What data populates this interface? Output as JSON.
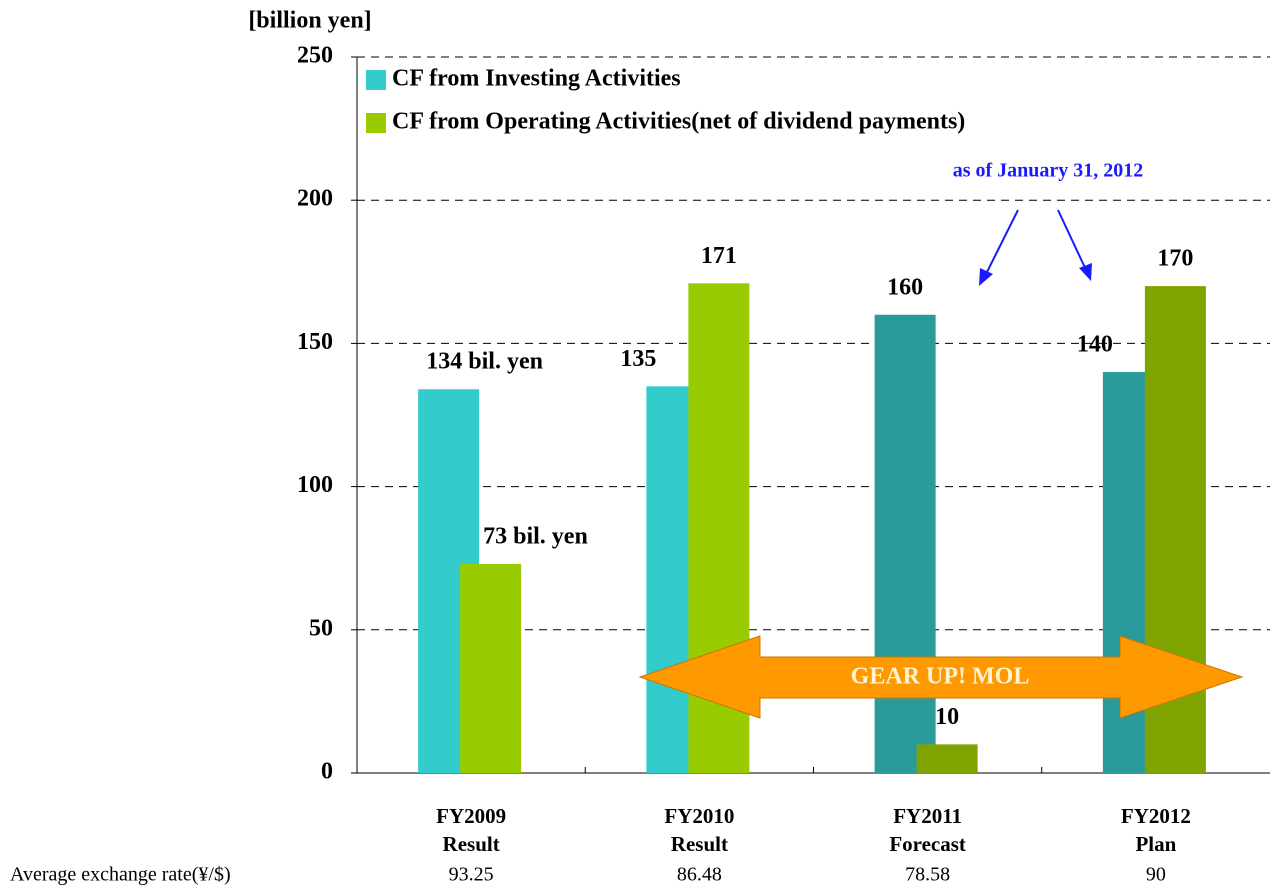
{
  "chart_data": {
    "type": "bar",
    "y_axis_label": "[billion yen]",
    "categories": [
      [
        "FY2009",
        "Result"
      ],
      [
        "FY2010",
        "Result"
      ],
      [
        "FY2011",
        "Forecast"
      ],
      [
        "FY2012",
        "Plan"
      ]
    ],
    "series": [
      {
        "name": "CF from Investing Activities",
        "color": "#33cccc",
        "colors": [
          "#33cccc",
          "#33cccc",
          "#2a9a9a",
          "#2a9a9a"
        ],
        "values": [
          134,
          135,
          160,
          140
        ],
        "value_labels": [
          "134 bil. yen",
          "135",
          "160",
          "140"
        ]
      },
      {
        "name": "CF from Operating Activities(net of dividend payments)",
        "color": "#99cc00",
        "colors": [
          "#99cc00",
          "#99cc00",
          "#7fa300",
          "#7fa300"
        ],
        "values": [
          73,
          171,
          10,
          170
        ],
        "value_labels": [
          "73 bil. yen",
          "171",
          "10",
          "170"
        ]
      }
    ],
    "ylim": [
      0,
      250
    ],
    "yticks": [
      0,
      50,
      100,
      150,
      200,
      250
    ],
    "grid": true,
    "legend": "upper left",
    "annotations": [
      "as of January 31, 2012",
      "GEAR UP! MOL"
    ],
    "exchange_rate": {
      "label": "Average exchange rate(¥/$)",
      "values": [
        93.25,
        86.48,
        78.58,
        90
      ]
    }
  }
}
